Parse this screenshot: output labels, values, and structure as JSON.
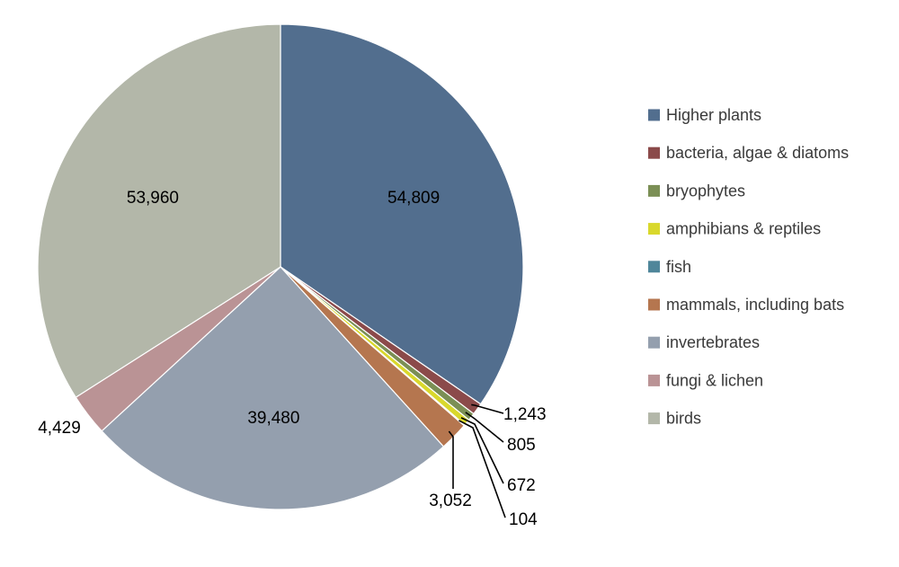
{
  "chart_data": {
    "type": "pie",
    "title": "",
    "legend_position": "right",
    "start_angle_deg": 0,
    "direction": "clockwise",
    "slices": [
      {
        "name": "Higher plants",
        "value": 54809,
        "label": "54,809",
        "color": "#526e8e"
      },
      {
        "name": "bacteria, algae & diatoms",
        "value": 1243,
        "label": "1,243",
        "color": "#8b4a4a"
      },
      {
        "name": "bryophytes",
        "value": 805,
        "label": "805",
        "color": "#7b8f55"
      },
      {
        "name": "amphibians & reptiles",
        "value": 672,
        "label": "672",
        "color": "#d9d82c"
      },
      {
        "name": "fish",
        "value": 104,
        "label": "104",
        "color": "#4f869a"
      },
      {
        "name": "mammals, including bats",
        "value": 3052,
        "label": "3,052",
        "color": "#b5764f"
      },
      {
        "name": "invertebrates",
        "value": 39480,
        "label": "39,480",
        "color": "#949fae"
      },
      {
        "name": "fungi & lichen",
        "value": 4429,
        "label": "4,429",
        "color": "#ba9395"
      },
      {
        "name": "birds",
        "value": 53960,
        "label": "53,960",
        "color": "#b3b7a9"
      }
    ]
  }
}
